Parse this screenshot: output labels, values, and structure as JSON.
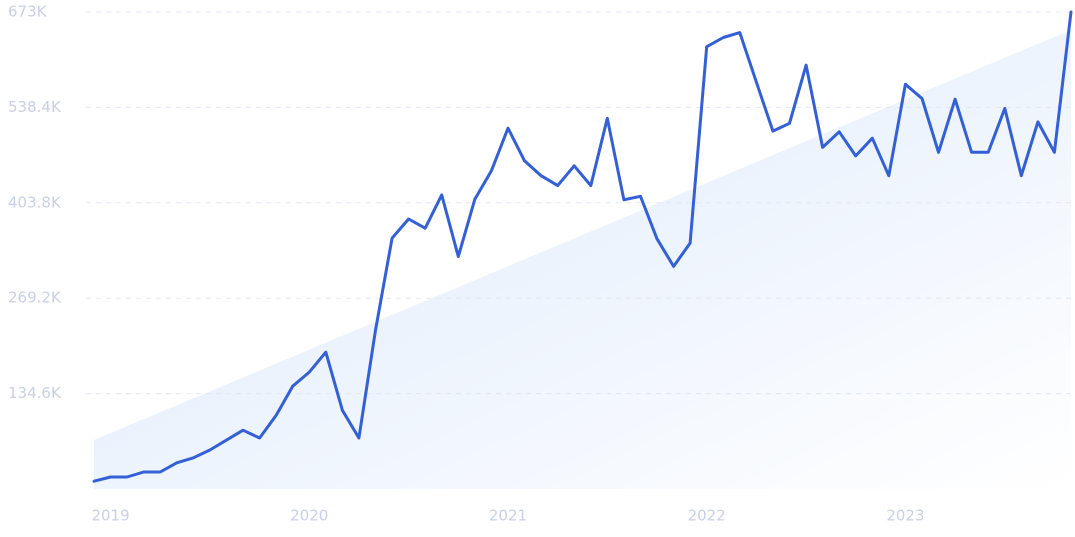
{
  "chart_data": {
    "type": "line",
    "categories": [
      null,
      "2019",
      null,
      null,
      null,
      null,
      null,
      null,
      null,
      null,
      null,
      null,
      null,
      "2020",
      null,
      null,
      null,
      null,
      null,
      null,
      null,
      null,
      null,
      null,
      null,
      "2021",
      null,
      null,
      null,
      null,
      null,
      null,
      null,
      null,
      null,
      null,
      null,
      "2022",
      null,
      null,
      null,
      null,
      null,
      null,
      null,
      null,
      null,
      null,
      null,
      "2023",
      null,
      null,
      null,
      null,
      null,
      null,
      null,
      null,
      null,
      null
    ],
    "series": [
      {
        "color": "#3360d8",
        "values": [
          11,
          17,
          17,
          24,
          24,
          37,
          44,
          55,
          69,
          83,
          72,
          104,
          145,
          165,
          193,
          111,
          72,
          224,
          354,
          381,
          368,
          415,
          328,
          409,
          449,
          509,
          463,
          442,
          428,
          456,
          428,
          523,
          408,
          413,
          353,
          314,
          347,
          624,
          637,
          644,
          574,
          505,
          516,
          598,
          482,
          504,
          470,
          495,
          442,
          571,
          551,
          475,
          550,
          475,
          475,
          537,
          442,
          518,
          475,
          673
        ]
      }
    ],
    "ylim": [
      0,
      673
    ],
    "yticks": [
      {
        "value": 134.6,
        "label": "134.6K"
      },
      {
        "value": 269.2,
        "label": "269.2K"
      },
      {
        "value": 403.8,
        "label": "403.8K"
      },
      {
        "value": 538.4,
        "label": "538.4K"
      },
      {
        "value": 673,
        "label": "673K"
      }
    ],
    "grid": true
  }
}
